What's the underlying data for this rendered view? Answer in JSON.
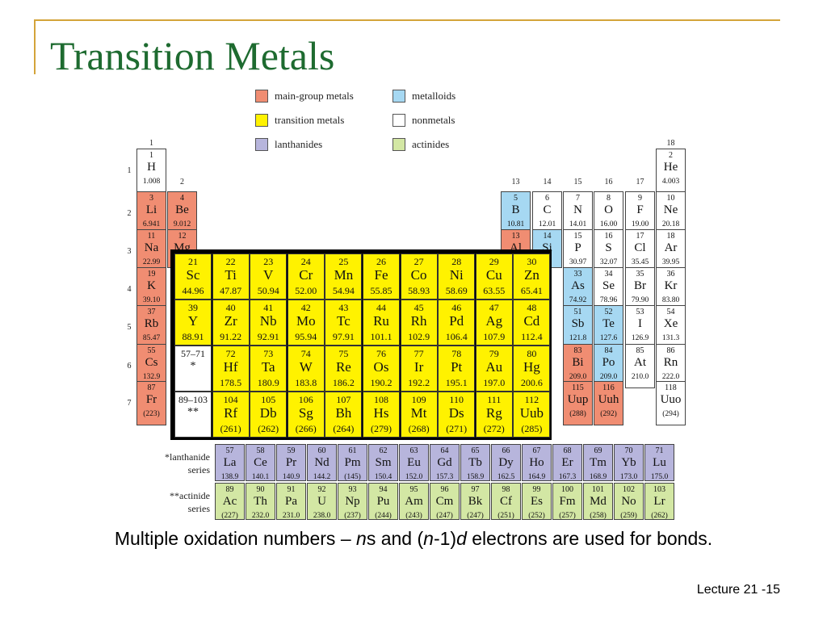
{
  "title": "Transition Metals",
  "legend": [
    {
      "label": "main-group metals",
      "color": "#F08D72"
    },
    {
      "label": "metalloids",
      "color": "#A6D8F2"
    },
    {
      "label": "transition metals",
      "color": "#FFF200"
    },
    {
      "label": "nonmetals",
      "color": "#FFFFFF"
    },
    {
      "label": "lanthanides",
      "color": "#B7B5DC"
    },
    {
      "label": "actinides",
      "color": "#D3E7A4"
    }
  ],
  "group_labels": [
    "1",
    "2",
    "13",
    "14",
    "15",
    "16",
    "17",
    "18"
  ],
  "period_labels": [
    "1",
    "2",
    "3",
    "4",
    "5",
    "6",
    "7"
  ],
  "elements": [
    {
      "num": "1",
      "sym": "H",
      "mass": "1.008",
      "cls": "non"
    },
    {
      "num": "2",
      "sym": "He",
      "mass": "4.003",
      "cls": "non"
    },
    {
      "num": "3",
      "sym": "Li",
      "mass": "6.941",
      "cls": "main"
    },
    {
      "num": "4",
      "sym": "Be",
      "mass": "9.012",
      "cls": "main"
    },
    {
      "num": "5",
      "sym": "B",
      "mass": "10.81",
      "cls": "metalloid"
    },
    {
      "num": "6",
      "sym": "C",
      "mass": "12.01",
      "cls": "non"
    },
    {
      "num": "7",
      "sym": "N",
      "mass": "14.01",
      "cls": "non"
    },
    {
      "num": "8",
      "sym": "O",
      "mass": "16.00",
      "cls": "non"
    },
    {
      "num": "9",
      "sym": "F",
      "mass": "19.00",
      "cls": "non"
    },
    {
      "num": "10",
      "sym": "Ne",
      "mass": "20.18",
      "cls": "non"
    },
    {
      "num": "11",
      "sym": "Na",
      "mass": "22.99",
      "cls": "main"
    },
    {
      "num": "12",
      "sym": "Mg",
      "mass": "",
      "cls": "main"
    },
    {
      "num": "13",
      "sym": "Al",
      "mass": "",
      "cls": "main"
    },
    {
      "num": "14",
      "sym": "Si",
      "mass": "",
      "cls": "metalloid"
    },
    {
      "num": "15",
      "sym": "P",
      "mass": "30.97",
      "cls": "non"
    },
    {
      "num": "16",
      "sym": "S",
      "mass": "32.07",
      "cls": "non"
    },
    {
      "num": "17",
      "sym": "Cl",
      "mass": "35.45",
      "cls": "non"
    },
    {
      "num": "18",
      "sym": "Ar",
      "mass": "39.95",
      "cls": "non"
    },
    {
      "num": "19",
      "sym": "K",
      "mass": "39.10",
      "cls": "main"
    },
    {
      "num": "33",
      "sym": "As",
      "mass": "74.92",
      "cls": "metalloid"
    },
    {
      "num": "34",
      "sym": "Se",
      "mass": "78.96",
      "cls": "non"
    },
    {
      "num": "35",
      "sym": "Br",
      "mass": "79.90",
      "cls": "non"
    },
    {
      "num": "36",
      "sym": "Kr",
      "mass": "83.80",
      "cls": "non"
    },
    {
      "num": "37",
      "sym": "Rb",
      "mass": "85.47",
      "cls": "main"
    },
    {
      "num": "51",
      "sym": "Sb",
      "mass": "121.8",
      "cls": "metalloid"
    },
    {
      "num": "52",
      "sym": "Te",
      "mass": "127.6",
      "cls": "metalloid"
    },
    {
      "num": "53",
      "sym": "I",
      "mass": "126.9",
      "cls": "non"
    },
    {
      "num": "54",
      "sym": "Xe",
      "mass": "131.3",
      "cls": "non"
    },
    {
      "num": "55",
      "sym": "Cs",
      "mass": "132.9",
      "cls": "main"
    },
    {
      "num": "83",
      "sym": "Bi",
      "mass": "209.0",
      "cls": "main"
    },
    {
      "num": "84",
      "sym": "Po",
      "mass": "209.0",
      "cls": "metalloid"
    },
    {
      "num": "85",
      "sym": "At",
      "mass": "210.0",
      "cls": "non"
    },
    {
      "num": "86",
      "sym": "Rn",
      "mass": "222.0",
      "cls": "non"
    },
    {
      "num": "87",
      "sym": "Fr",
      "mass": "(223)",
      "cls": "main"
    },
    {
      "num": "115",
      "sym": "Uup",
      "mass": "(288)",
      "cls": "main"
    },
    {
      "num": "116",
      "sym": "Uuh",
      "mass": "(292)",
      "cls": "main"
    },
    {
      "num": "118",
      "sym": "Uuo",
      "mass": "(294)",
      "cls": "non"
    }
  ],
  "transition_rows": [
    [
      {
        "num": "21",
        "sym": "Sc",
        "mass": "44.96"
      },
      {
        "num": "22",
        "sym": "Ti",
        "mass": "47.87"
      },
      {
        "num": "23",
        "sym": "V",
        "mass": "50.94"
      },
      {
        "num": "24",
        "sym": "Cr",
        "mass": "52.00"
      },
      {
        "num": "25",
        "sym": "Mn",
        "mass": "54.94"
      },
      {
        "num": "26",
        "sym": "Fe",
        "mass": "55.85"
      },
      {
        "num": "27",
        "sym": "Co",
        "mass": "58.93"
      },
      {
        "num": "28",
        "sym": "Ni",
        "mass": "58.69"
      },
      {
        "num": "29",
        "sym": "Cu",
        "mass": "63.55"
      },
      {
        "num": "30",
        "sym": "Zn",
        "mass": "65.41"
      }
    ],
    [
      {
        "num": "39",
        "sym": "Y",
        "mass": "88.91"
      },
      {
        "num": "40",
        "sym": "Zr",
        "mass": "91.22"
      },
      {
        "num": "41",
        "sym": "Nb",
        "mass": "92.91"
      },
      {
        "num": "42",
        "sym": "Mo",
        "mass": "95.94"
      },
      {
        "num": "43",
        "sym": "Tc",
        "mass": "97.91"
      },
      {
        "num": "44",
        "sym": "Ru",
        "mass": "101.1"
      },
      {
        "num": "45",
        "sym": "Rh",
        "mass": "102.9"
      },
      {
        "num": "46",
        "sym": "Pd",
        "mass": "106.4"
      },
      {
        "num": "47",
        "sym": "Ag",
        "mass": "107.9"
      },
      {
        "num": "48",
        "sym": "Cd",
        "mass": "112.4"
      }
    ],
    [
      {
        "num": "57–71",
        "sym": "*",
        "mass": "",
        "blank": true
      },
      {
        "num": "72",
        "sym": "Hf",
        "mass": "178.5"
      },
      {
        "num": "73",
        "sym": "Ta",
        "mass": "180.9"
      },
      {
        "num": "74",
        "sym": "W",
        "mass": "183.8"
      },
      {
        "num": "75",
        "sym": "Re",
        "mass": "186.2"
      },
      {
        "num": "76",
        "sym": "Os",
        "mass": "190.2"
      },
      {
        "num": "77",
        "sym": "Ir",
        "mass": "192.2"
      },
      {
        "num": "78",
        "sym": "Pt",
        "mass": "195.1"
      },
      {
        "num": "79",
        "sym": "Au",
        "mass": "197.0"
      },
      {
        "num": "80",
        "sym": "Hg",
        "mass": "200.6"
      }
    ],
    [
      {
        "num": "89–103",
        "sym": "**",
        "mass": "",
        "blank": true
      },
      {
        "num": "104",
        "sym": "Rf",
        "mass": "(261)"
      },
      {
        "num": "105",
        "sym": "Db",
        "mass": "(262)"
      },
      {
        "num": "106",
        "sym": "Sg",
        "mass": "(266)"
      },
      {
        "num": "107",
        "sym": "Bh",
        "mass": "(264)"
      },
      {
        "num": "108",
        "sym": "Hs",
        "mass": "(279)"
      },
      {
        "num": "109",
        "sym": "Mt",
        "mass": "(268)"
      },
      {
        "num": "110",
        "sym": "Ds",
        "mass": "(271)"
      },
      {
        "num": "111",
        "sym": "Rg",
        "mass": "(272)"
      },
      {
        "num": "112",
        "sym": "Uub",
        "mass": "(285)"
      }
    ]
  ],
  "lanthanides": {
    "label_line1": "*lanthanide",
    "label_line2": "series",
    "cells": [
      {
        "num": "57",
        "sym": "La",
        "mass": "138.9"
      },
      {
        "num": "58",
        "sym": "Ce",
        "mass": "140.1"
      },
      {
        "num": "59",
        "sym": "Pr",
        "mass": "140.9"
      },
      {
        "num": "60",
        "sym": "Nd",
        "mass": "144.2"
      },
      {
        "num": "61",
        "sym": "Pm",
        "mass": "(145)"
      },
      {
        "num": "62",
        "sym": "Sm",
        "mass": "150.4"
      },
      {
        "num": "63",
        "sym": "Eu",
        "mass": "152.0"
      },
      {
        "num": "64",
        "sym": "Gd",
        "mass": "157.3"
      },
      {
        "num": "65",
        "sym": "Tb",
        "mass": "158.9"
      },
      {
        "num": "66",
        "sym": "Dy",
        "mass": "162.5"
      },
      {
        "num": "67",
        "sym": "Ho",
        "mass": "164.9"
      },
      {
        "num": "68",
        "sym": "Er",
        "mass": "167.3"
      },
      {
        "num": "69",
        "sym": "Tm",
        "mass": "168.9"
      },
      {
        "num": "70",
        "sym": "Yb",
        "mass": "173.0"
      },
      {
        "num": "71",
        "sym": "Lu",
        "mass": "175.0"
      }
    ]
  },
  "actinides": {
    "label_line1": "**actinide",
    "label_line2": "series",
    "cells": [
      {
        "num": "89",
        "sym": "Ac",
        "mass": "(227)"
      },
      {
        "num": "90",
        "sym": "Th",
        "mass": "232.0"
      },
      {
        "num": "91",
        "sym": "Pa",
        "mass": "231.0"
      },
      {
        "num": "92",
        "sym": "U",
        "mass": "238.0"
      },
      {
        "num": "93",
        "sym": "Np",
        "mass": "(237)"
      },
      {
        "num": "94",
        "sym": "Pu",
        "mass": "(244)"
      },
      {
        "num": "95",
        "sym": "Am",
        "mass": "(243)"
      },
      {
        "num": "96",
        "sym": "Cm",
        "mass": "(247)"
      },
      {
        "num": "97",
        "sym": "Bk",
        "mass": "(247)"
      },
      {
        "num": "98",
        "sym": "Cf",
        "mass": "(251)"
      },
      {
        "num": "99",
        "sym": "Es",
        "mass": "(252)"
      },
      {
        "num": "100",
        "sym": "Fm",
        "mass": "(257)"
      },
      {
        "num": "101",
        "sym": "Md",
        "mass": "(258)"
      },
      {
        "num": "102",
        "sym": "No",
        "mass": "(259)"
      },
      {
        "num": "103",
        "sym": "Lr",
        "mass": "(262)"
      }
    ]
  },
  "caption": {
    "part1": "Multiple oxidation numbers – ",
    "italic1": "n",
    "part2": "s and (",
    "italic2": "n",
    "part3": "-1)",
    "italic3": "d",
    "part4": " electrons are used for bonds."
  },
  "footer": "Lecture 21 -15"
}
